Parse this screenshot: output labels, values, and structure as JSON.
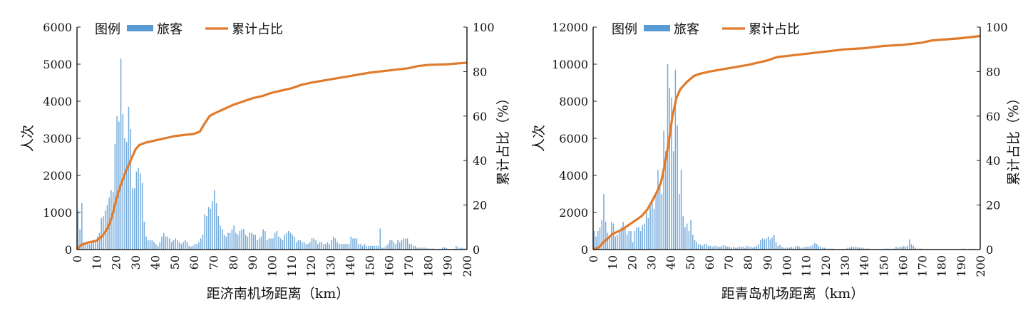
{
  "chart_data": [
    {
      "type": "bar+line",
      "xlabel": "距济南机场距离（km）",
      "ylabel": "人次",
      "y2label": "累计占比（%）",
      "legend": {
        "title": "图例",
        "entries": [
          "旅客",
          "累计占比"
        ],
        "placement": "top-left"
      },
      "xlim": [
        0,
        200
      ],
      "ylim": [
        0,
        6000
      ],
      "y2lim": [
        0,
        100
      ],
      "xticks": [
        0,
        10,
        20,
        30,
        40,
        50,
        60,
        70,
        80,
        90,
        100,
        110,
        120,
        130,
        140,
        150,
        160,
        170,
        180,
        190,
        200
      ],
      "yticks": [
        0,
        1000,
        2000,
        3000,
        4000,
        5000,
        6000
      ],
      "y2ticks": [
        0,
        20,
        40,
        60,
        80,
        100
      ],
      "colors": {
        "bars": "#5b9bd5",
        "line": "#e07b2c"
      },
      "bars": {
        "name": "旅客",
        "x_start": 1,
        "x_step": 1,
        "values": [
          1050,
          550,
          1250,
          200,
          150,
          150,
          150,
          200,
          200,
          250,
          350,
          450,
          850,
          900,
          1050,
          1200,
          1400,
          1600,
          1550,
          2850,
          3600,
          3450,
          5150,
          3650,
          3000,
          2900,
          3850,
          3250,
          1650,
          1650,
          2100,
          2200,
          2050,
          1800,
          750,
          350,
          250,
          250,
          250,
          200,
          150,
          100,
          200,
          350,
          450,
          350,
          350,
          300,
          200,
          250,
          300,
          250,
          200,
          150,
          200,
          250,
          200,
          100,
          80,
          100,
          150,
          150,
          200,
          300,
          400,
          950,
          900,
          1150,
          1100,
          1300,
          1600,
          1250,
          900,
          650,
          550,
          400,
          350,
          450,
          450,
          550,
          650,
          450,
          400,
          500,
          550,
          550,
          400,
          350,
          450,
          450,
          400,
          400,
          250,
          300,
          350,
          550,
          500,
          250,
          300,
          300,
          300,
          450,
          500,
          350,
          300,
          250,
          400,
          450,
          500,
          450,
          400,
          350,
          200,
          250,
          250,
          200,
          200,
          150,
          150,
          200,
          300,
          300,
          250,
          150,
          200,
          200,
          150,
          150,
          200,
          150,
          250,
          350,
          300,
          200,
          150,
          150,
          150,
          150,
          150,
          150,
          350,
          300,
          300,
          300,
          150,
          150,
          100,
          150,
          100,
          100,
          100,
          100,
          100,
          100,
          100,
          570,
          50,
          50,
          100,
          150,
          250,
          250,
          200,
          150,
          250,
          200,
          250,
          300,
          300,
          300,
          150,
          150,
          100,
          100,
          50,
          50,
          50,
          50,
          50,
          30,
          30,
          30,
          30,
          20,
          20,
          20,
          20,
          50,
          60,
          40,
          20,
          20,
          20,
          20,
          100,
          60,
          40,
          50,
          30,
          30
        ]
      },
      "line": {
        "name": "累计占比",
        "x": [
          0,
          2,
          5,
          10,
          13,
          16,
          18,
          20,
          22,
          25,
          28,
          30,
          32,
          35,
          40,
          45,
          50,
          55,
          60,
          63,
          65,
          68,
          70,
          75,
          80,
          85,
          90,
          95,
          100,
          110,
          115,
          120,
          130,
          140,
          150,
          160,
          170,
          175,
          180,
          190,
          200
        ],
        "y": [
          0,
          2,
          3,
          4,
          6,
          10,
          15,
          22,
          28,
          35,
          41,
          45,
          47,
          48,
          49,
          50,
          51,
          51.5,
          52,
          53,
          56,
          60,
          61,
          63,
          65,
          66.5,
          68,
          69,
          70.5,
          72.5,
          74,
          75,
          76.5,
          78,
          79.5,
          80.5,
          81.5,
          82.5,
          83,
          83.3,
          84
        ]
      }
    },
    {
      "type": "bar+line",
      "xlabel": "距青岛机场距离（km）",
      "ylabel": "人次",
      "y2label": "累计占比（%）",
      "legend": {
        "title": "图例",
        "entries": [
          "旅客",
          "累计占比"
        ],
        "placement": "top-left"
      },
      "xlim": [
        0,
        200
      ],
      "ylim": [
        0,
        12000
      ],
      "y2lim": [
        0,
        100
      ],
      "xticks": [
        0,
        10,
        20,
        30,
        40,
        50,
        60,
        70,
        80,
        90,
        100,
        110,
        120,
        130,
        140,
        150,
        160,
        170,
        180,
        190,
        200
      ],
      "yticks": [
        0,
        2000,
        4000,
        6000,
        8000,
        10000,
        12000
      ],
      "y2ticks": [
        0,
        20,
        40,
        60,
        80,
        100
      ],
      "colors": {
        "bars": "#5b9bd5",
        "line": "#e07b2c"
      },
      "bars": {
        "name": "旅客",
        "x_start": 1,
        "x_step": 1,
        "values": [
          1000,
          700,
          1000,
          1200,
          1600,
          3000,
          1500,
          900,
          700,
          1500,
          1400,
          700,
          800,
          1000,
          1200,
          1500,
          1200,
          800,
          1000,
          1000,
          400,
          1000,
          1200,
          1200,
          1000,
          1300,
          1400,
          2000,
          1700,
          2300,
          2500,
          2200,
          3000,
          4300,
          3500,
          3000,
          6400,
          5300,
          10000,
          8700,
          8200,
          5300,
          9700,
          6700,
          3000,
          4300,
          1800,
          1200,
          1400,
          1000,
          1600,
          800,
          500,
          400,
          300,
          250,
          200,
          300,
          300,
          200,
          200,
          150,
          200,
          200,
          150,
          150,
          200,
          250,
          200,
          150,
          150,
          100,
          150,
          100,
          100,
          150,
          150,
          150,
          100,
          200,
          150,
          150,
          100,
          150,
          200,
          300,
          500,
          600,
          550,
          600,
          700,
          550,
          650,
          800,
          400,
          200,
          250,
          150,
          100,
          100,
          100,
          100,
          150,
          100,
          150,
          200,
          150,
          100,
          100,
          150,
          150,
          150,
          200,
          250,
          350,
          300,
          200,
          150,
          100,
          100,
          50,
          50,
          50,
          50,
          30,
          30,
          30,
          30,
          30,
          30,
          50,
          100,
          100,
          150,
          150,
          150,
          150,
          100,
          100,
          100,
          50,
          50,
          50,
          30,
          30,
          30,
          30,
          30,
          30,
          30,
          50,
          50,
          50,
          50,
          50,
          50,
          150,
          100,
          150,
          150,
          200,
          150,
          200,
          550,
          300,
          200,
          100,
          50,
          50,
          50,
          30,
          30,
          30,
          30,
          30,
          30,
          30,
          30,
          30,
          30,
          30,
          30,
          30,
          30,
          30,
          30,
          30,
          30,
          30,
          30,
          50,
          50,
          30,
          30,
          50,
          30,
          30,
          30,
          30,
          30
        ]
      },
      "line": {
        "name": "累计占比",
        "x": [
          0,
          3,
          5,
          10,
          15,
          20,
          25,
          28,
          30,
          33,
          35,
          37,
          39,
          41,
          43,
          45,
          48,
          52,
          55,
          60,
          70,
          80,
          90,
          95,
          100,
          110,
          120,
          130,
          140,
          150,
          160,
          170,
          175,
          190,
          200
        ],
        "y": [
          0,
          1,
          3,
          7,
          9,
          12,
          15,
          18,
          21,
          26,
          30,
          38,
          48,
          60,
          68,
          72,
          75,
          78,
          79,
          80,
          81.5,
          83,
          85,
          86.5,
          87,
          88,
          89,
          90,
          90.5,
          91.5,
          92,
          93,
          94,
          95,
          96
        ]
      }
    }
  ]
}
